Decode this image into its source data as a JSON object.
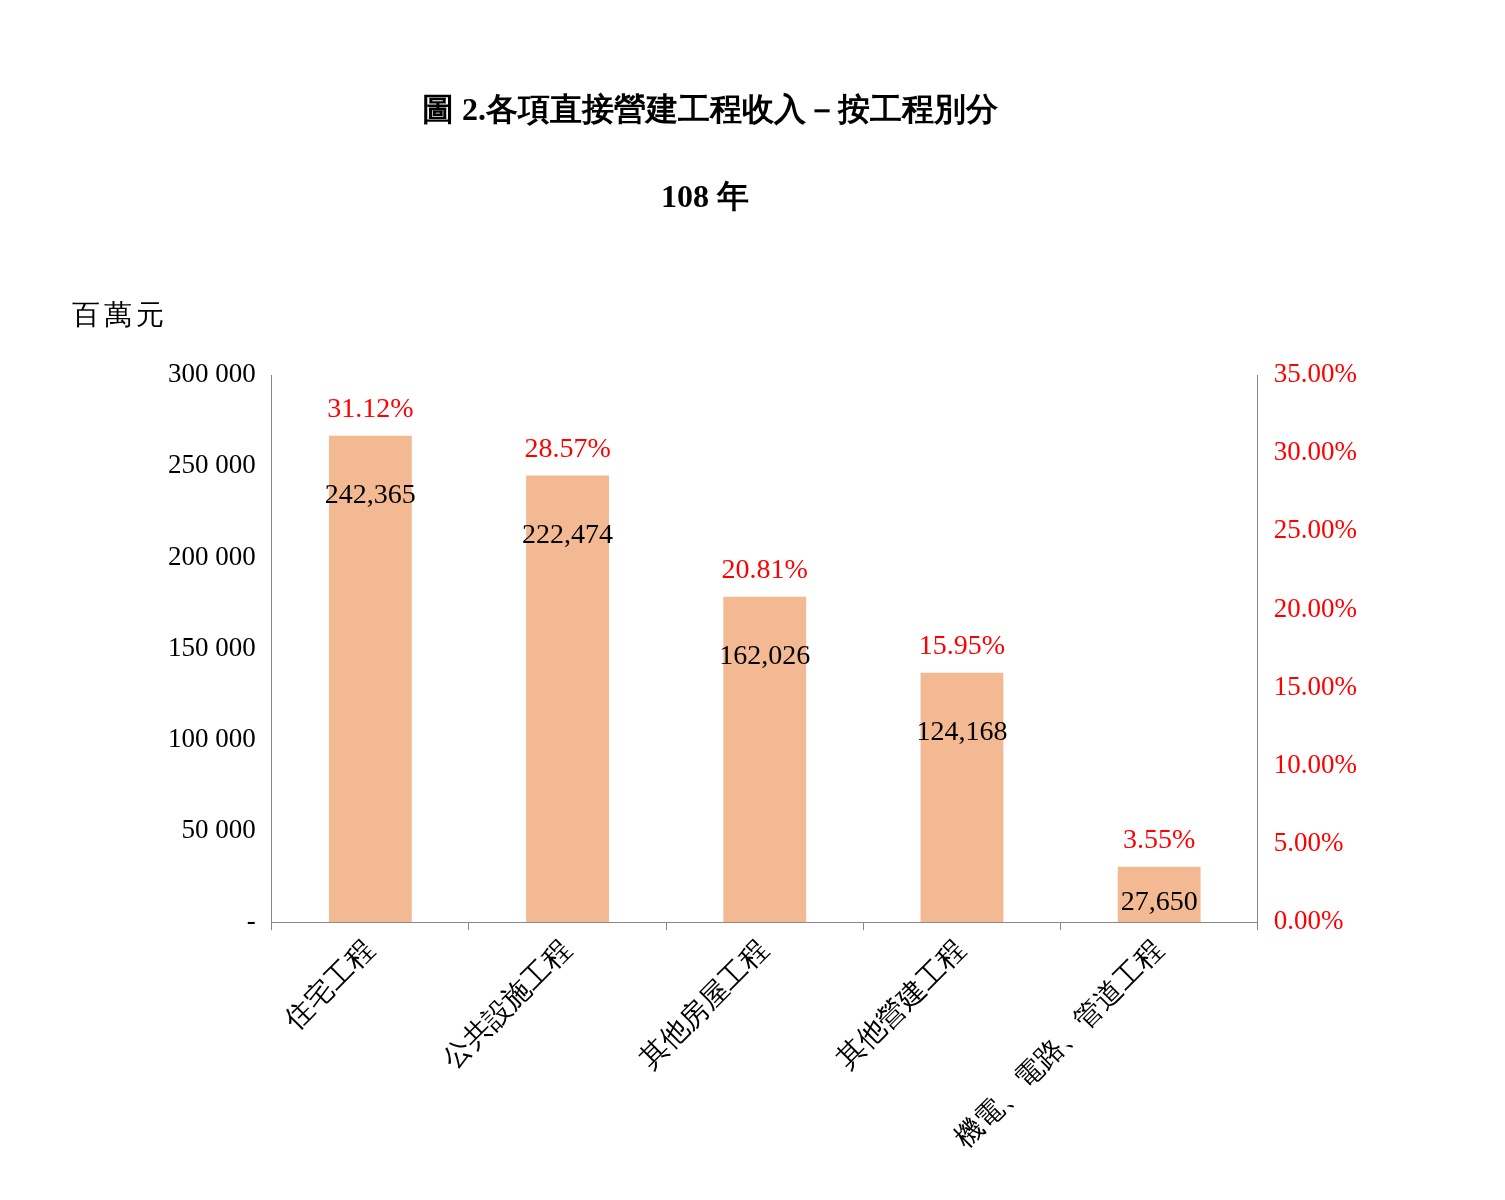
{
  "chart_data": {
    "type": "bar",
    "title": "圖 2.各項直接營建工程收入－按工程別分",
    "subtitle": "108 年",
    "ylabel": "百萬元",
    "categories": [
      "住宅工程",
      "公共設施工程",
      "其他房屋工程",
      "其他營建工程",
      "機電、電路、管道工程"
    ],
    "series": [
      {
        "axis": "y2",
        "color": "#f2b992",
        "values": [
          31.12,
          28.57,
          20.81,
          15.95,
          3.55
        ],
        "value_labels": [
          "31.12%",
          "28.57%",
          "20.81%",
          "15.95%",
          "3.55%"
        ]
      }
    ],
    "annotations": [
      "242,365",
      "222,474",
      "162,026",
      "124,168",
      "27,650"
    ],
    "ylim": [
      0,
      300000
    ],
    "yticks": [
      {
        "value": 0,
        "label": "-"
      },
      {
        "value": 50000,
        "label": "50 000"
      },
      {
        "value": 100000,
        "label": "100 000"
      },
      {
        "value": 150000,
        "label": "150 000"
      },
      {
        "value": 200000,
        "label": "200 000"
      },
      {
        "value": 250000,
        "label": "250 000"
      },
      {
        "value": 300000,
        "label": "300 000"
      }
    ],
    "y2lim": [
      0,
      35
    ],
    "y2ticks": [
      {
        "value": 0,
        "label": "0.00%"
      },
      {
        "value": 5,
        "label": "5.00%"
      },
      {
        "value": 10,
        "label": "10.00%"
      },
      {
        "value": 15,
        "label": "15.00%"
      },
      {
        "value": 20,
        "label": "20.00%"
      },
      {
        "value": 25,
        "label": "25.00%"
      },
      {
        "value": 30,
        "label": "30.00%"
      },
      {
        "value": 35,
        "label": "35.00%"
      }
    ],
    "grid": false,
    "legend": false
  }
}
